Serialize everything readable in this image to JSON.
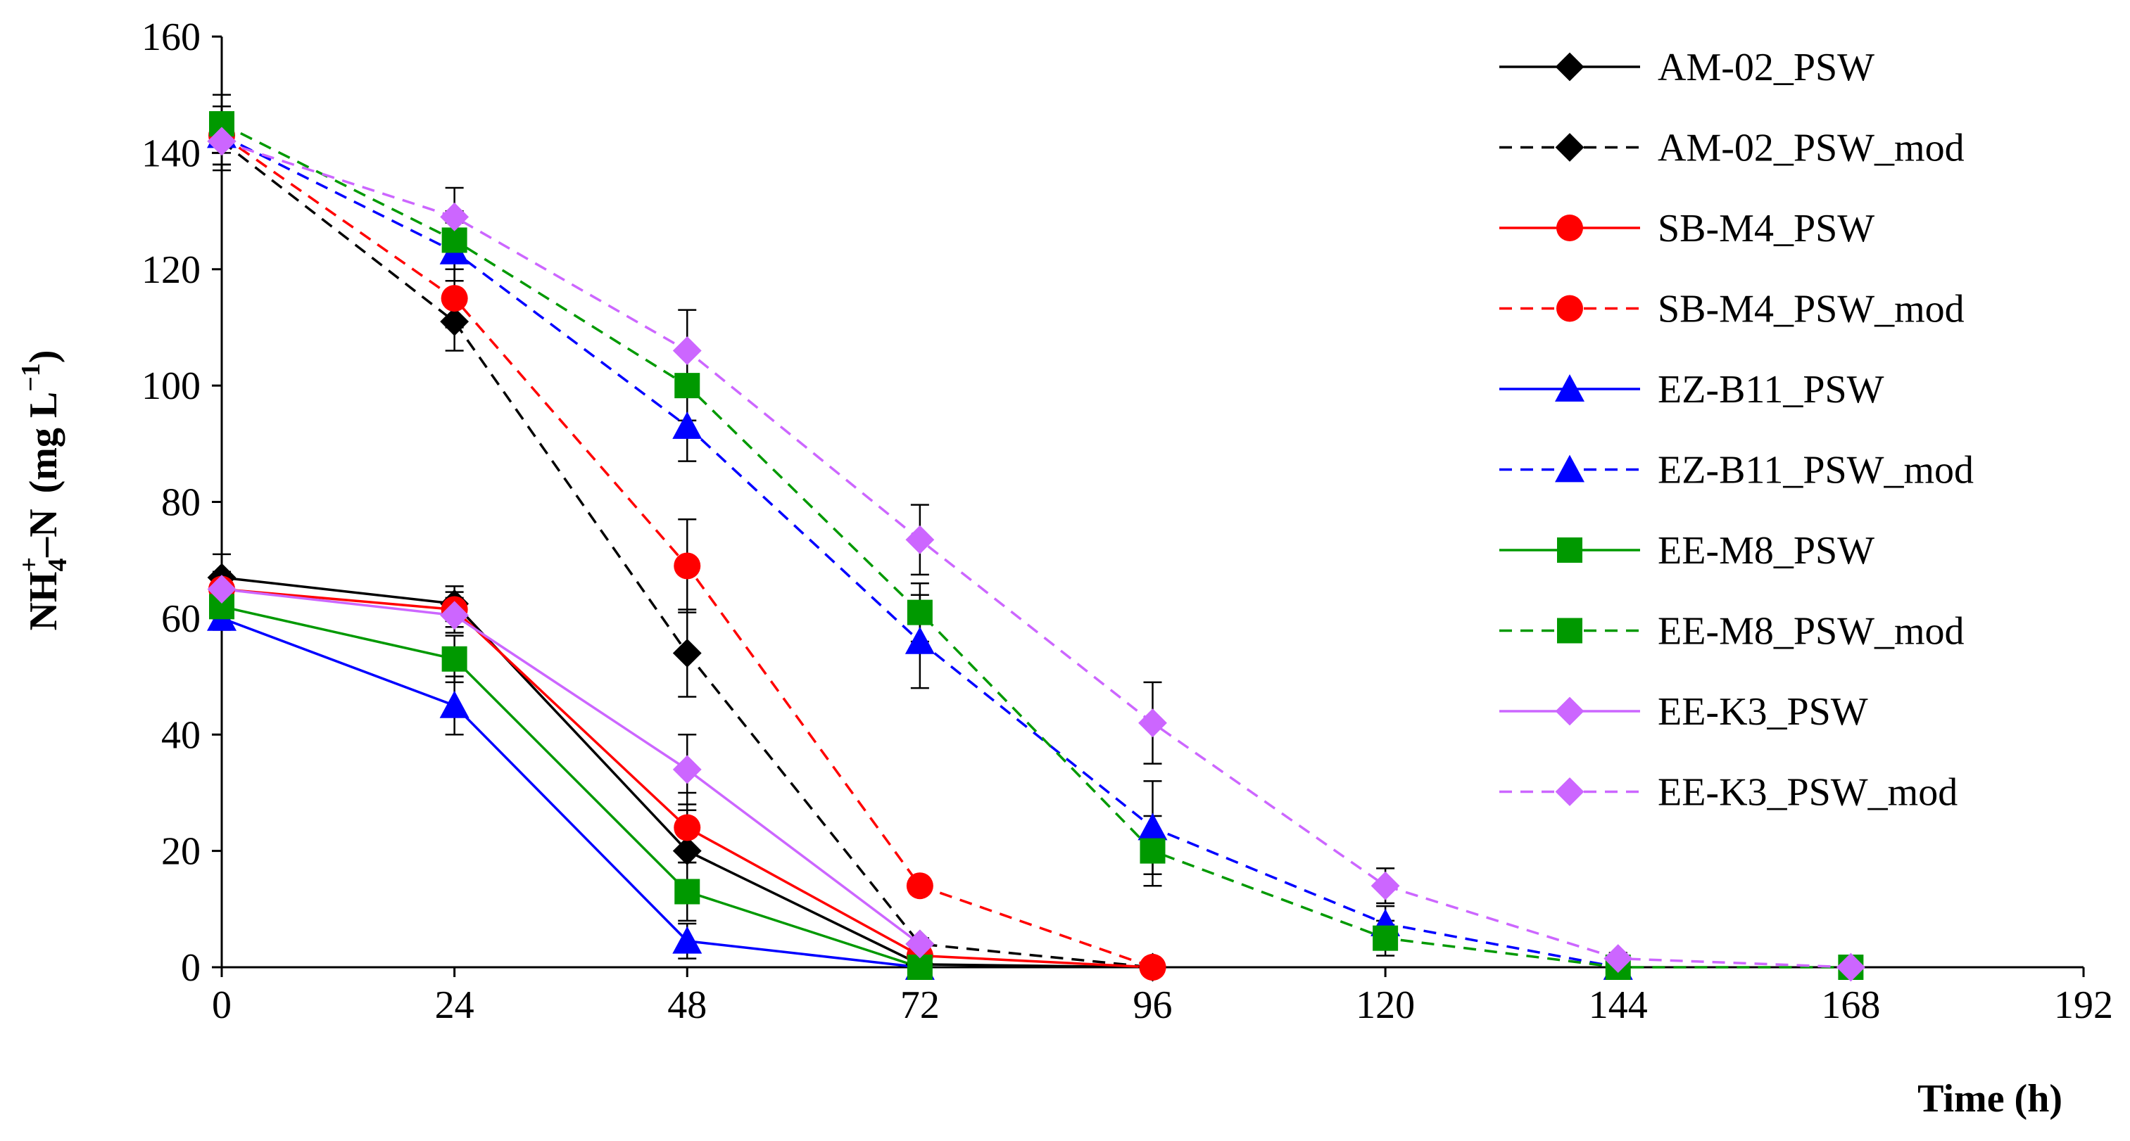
{
  "chart_data": {
    "type": "line",
    "title": "",
    "xlabel": "Time (h)",
    "ylabel_main": "NH",
    "ylabel_sub": "4",
    "ylabel_sup": "+",
    "ylabel_rest": "–N",
    "ylabel_unit": "(mg L",
    "ylabel_unit_sup": "−1",
    "ylabel_unit_close": ")",
    "xlim": [
      0,
      192
    ],
    "ylim": [
      0,
      160
    ],
    "xticks": [
      "0",
      "24",
      "48",
      "72",
      "96",
      "120",
      "144",
      "168",
      "192"
    ],
    "yticks": [
      "0",
      "20",
      "40",
      "60",
      "80",
      "100",
      "120",
      "140",
      "160"
    ],
    "legend_position": "top-right",
    "colors": {
      "AM-02": "#000000",
      "SB-M4": "#ff0000",
      "EZ-B11": "#0000ff",
      "EE-M8": "#009900",
      "EE-K3": "#cc66ff"
    },
    "series": [
      {
        "name": "AM-02_PSW",
        "color": "#000000",
        "dash": false,
        "marker": "diamond",
        "x": [
          0,
          24,
          48,
          72,
          96
        ],
        "y": [
          67,
          62.5,
          20,
          0.5,
          0
        ],
        "err": [
          4,
          3,
          7,
          1,
          0
        ]
      },
      {
        "name": "AM-02_PSW_mod",
        "color": "#000000",
        "dash": true,
        "marker": "diamond",
        "x": [
          0,
          24,
          48,
          72,
          96
        ],
        "y": [
          142,
          111,
          54,
          4,
          0
        ],
        "err": [
          5,
          5,
          7.5,
          1,
          0
        ]
      },
      {
        "name": "SB-M4_PSW",
        "color": "#ff0000",
        "dash": false,
        "marker": "circle",
        "x": [
          0,
          24,
          48,
          72,
          96
        ],
        "y": [
          65,
          61.5,
          24,
          2,
          0
        ],
        "err": [
          3,
          3,
          6,
          1,
          0
        ]
      },
      {
        "name": "SB-M4_PSW_mod",
        "color": "#ff0000",
        "dash": true,
        "marker": "circle",
        "x": [
          0,
          24,
          48,
          72,
          96
        ],
        "y": [
          143,
          115,
          69,
          14,
          0
        ],
        "err": [
          5,
          5,
          8,
          1,
          0
        ]
      },
      {
        "name": "EZ-B11_PSW",
        "color": "#0000ff",
        "dash": false,
        "marker": "triangle",
        "x": [
          0,
          24,
          48,
          72
        ],
        "y": [
          60,
          45,
          4.5,
          0
        ],
        "err": [
          2,
          5,
          3,
          0
        ]
      },
      {
        "name": "EZ-B11_PSW_mod",
        "color": "#0000ff",
        "dash": true,
        "marker": "triangle",
        "x": [
          0,
          24,
          48,
          72,
          96,
          120,
          144
        ],
        "y": [
          143,
          123,
          93,
          56,
          24,
          7.5,
          0
        ],
        "err": [
          5,
          5,
          6,
          8,
          8,
          3,
          0
        ]
      },
      {
        "name": "EE-M8_PSW",
        "color": "#009900",
        "dash": false,
        "marker": "square",
        "x": [
          0,
          24,
          48,
          72
        ],
        "y": [
          62,
          53,
          13,
          0
        ],
        "err": [
          3,
          4,
          5,
          0
        ]
      },
      {
        "name": "EE-M8_PSW_mod",
        "color": "#009900",
        "dash": true,
        "marker": "square",
        "x": [
          0,
          24,
          48,
          72,
          96,
          120,
          144,
          168
        ],
        "y": [
          145,
          125,
          100,
          61,
          20,
          5,
          0,
          0
        ],
        "err": [
          5,
          5,
          6,
          5,
          6,
          3,
          0,
          0
        ]
      },
      {
        "name": "EE-K3_PSW",
        "color": "#cc66ff",
        "dash": false,
        "marker": "diamond",
        "x": [
          0,
          24,
          48,
          72
        ],
        "y": [
          65,
          60.5,
          34,
          4
        ],
        "err": [
          3,
          3,
          6,
          1
        ]
      },
      {
        "name": "EE-K3_PSW_mod",
        "color": "#cc66ff",
        "dash": true,
        "marker": "diamond",
        "x": [
          0,
          24,
          48,
          72,
          96,
          120,
          144,
          168
        ],
        "y": [
          142,
          129,
          106,
          73.5,
          42,
          14,
          1.5,
          0
        ],
        "err": [
          4,
          5,
          7,
          6,
          7,
          3,
          1,
          0
        ]
      }
    ]
  }
}
